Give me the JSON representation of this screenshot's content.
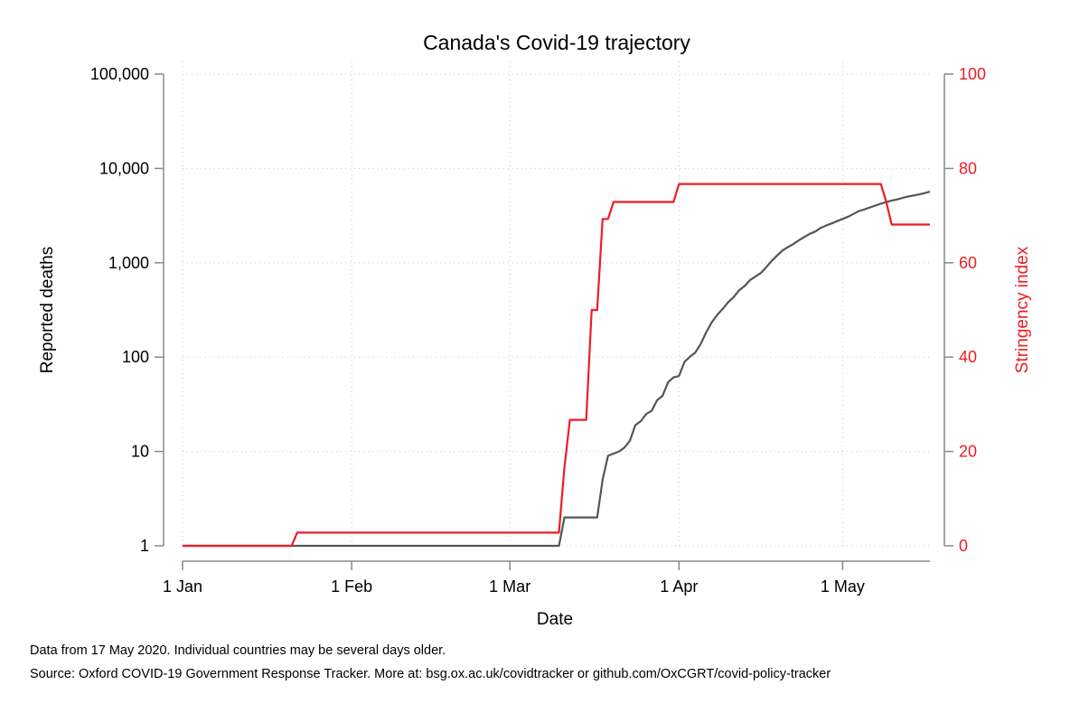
{
  "chart_data": {
    "type": "line",
    "title": "Canada's Covid-19 trajectory",
    "xlabel": "Date",
    "ylabel": "Reported deaths",
    "y2label": "Stringency index",
    "y_scale": "log",
    "ylim": [
      1,
      100000
    ],
    "y2lim": [
      0,
      100
    ],
    "xlim": [
      "2020-01-01",
      "2020-05-17"
    ],
    "x_ticks": [
      {
        "date": "2020-01-01",
        "label": "1 Jan"
      },
      {
        "date": "2020-02-01",
        "label": "1 Feb"
      },
      {
        "date": "2020-03-01",
        "label": "1 Mar"
      },
      {
        "date": "2020-04-01",
        "label": "1 Apr"
      },
      {
        "date": "2020-05-01",
        "label": "1 May"
      }
    ],
    "y_ticks": [
      {
        "value": 1,
        "label": "1"
      },
      {
        "value": 10,
        "label": "10"
      },
      {
        "value": 100,
        "label": "100"
      },
      {
        "value": 1000,
        "label": "1,000"
      },
      {
        "value": 10000,
        "label": "10,000"
      },
      {
        "value": 100000,
        "label": "100,000"
      }
    ],
    "y2_ticks": [
      {
        "value": 0,
        "label": "0"
      },
      {
        "value": 20,
        "label": "20"
      },
      {
        "value": 40,
        "label": "40"
      },
      {
        "value": 60,
        "label": "60"
      },
      {
        "value": 80,
        "label": "80"
      },
      {
        "value": 100,
        "label": "100"
      }
    ],
    "grid": true,
    "series": [
      {
        "name": "Reported deaths",
        "axis": "left",
        "color": "#555555",
        "points": [
          [
            "2020-01-01",
            1
          ],
          [
            "2020-03-10",
            1
          ],
          [
            "2020-03-11",
            2
          ],
          [
            "2020-03-17",
            2
          ],
          [
            "2020-03-18",
            5
          ],
          [
            "2020-03-19",
            9
          ],
          [
            "2020-03-21",
            10
          ],
          [
            "2020-03-22",
            11
          ],
          [
            "2020-03-23",
            13
          ],
          [
            "2020-03-24",
            19
          ],
          [
            "2020-03-25",
            21
          ],
          [
            "2020-03-26",
            25
          ],
          [
            "2020-03-27",
            27
          ],
          [
            "2020-03-28",
            35
          ],
          [
            "2020-03-29",
            39
          ],
          [
            "2020-03-30",
            54
          ],
          [
            "2020-03-31",
            61
          ],
          [
            "2020-04-01",
            63
          ],
          [
            "2020-04-02",
            89
          ],
          [
            "2020-04-03",
            101
          ],
          [
            "2020-04-04",
            112
          ],
          [
            "2020-04-05",
            139
          ],
          [
            "2020-04-06",
            184
          ],
          [
            "2020-04-07",
            233
          ],
          [
            "2020-04-08",
            280
          ],
          [
            "2020-04-09",
            324
          ],
          [
            "2020-04-10",
            381
          ],
          [
            "2020-04-11",
            432
          ],
          [
            "2020-04-12",
            509
          ],
          [
            "2020-04-13",
            566
          ],
          [
            "2020-04-14",
            653
          ],
          [
            "2020-04-15",
            714
          ],
          [
            "2020-04-16",
            779
          ],
          [
            "2020-04-17",
            900
          ],
          [
            "2020-04-18",
            1048
          ],
          [
            "2020-04-19",
            1195
          ],
          [
            "2020-04-20",
            1354
          ],
          [
            "2020-04-21",
            1470
          ],
          [
            "2020-04-22",
            1587
          ],
          [
            "2020-04-23",
            1735
          ],
          [
            "2020-04-24",
            1880
          ],
          [
            "2020-04-25",
            2028
          ],
          [
            "2020-04-26",
            2147
          ],
          [
            "2020-04-27",
            2350
          ],
          [
            "2020-04-28",
            2489
          ],
          [
            "2020-04-29",
            2617
          ],
          [
            "2020-04-30",
            2766
          ],
          [
            "2020-05-01",
            2919
          ],
          [
            "2020-05-02",
            3082
          ],
          [
            "2020-05-03",
            3299
          ],
          [
            "2020-05-04",
            3536
          ],
          [
            "2020-05-05",
            3682
          ],
          [
            "2020-05-06",
            3854
          ],
          [
            "2020-05-07",
            4043
          ],
          [
            "2020-05-08",
            4232
          ],
          [
            "2020-05-09",
            4406
          ],
          [
            "2020-05-10",
            4569
          ],
          [
            "2020-05-11",
            4697
          ],
          [
            "2020-05-12",
            4871
          ],
          [
            "2020-05-13",
            5049
          ],
          [
            "2020-05-14",
            5169
          ],
          [
            "2020-05-15",
            5304
          ],
          [
            "2020-05-16",
            5472
          ],
          [
            "2020-05-17",
            5679
          ]
        ]
      },
      {
        "name": "Stringency index",
        "axis": "right",
        "color": "#ee1c25",
        "points": [
          [
            "2020-01-01",
            0
          ],
          [
            "2020-01-21",
            0
          ],
          [
            "2020-01-22",
            2.8
          ],
          [
            "2020-03-10",
            2.8
          ],
          [
            "2020-03-11",
            16.7
          ],
          [
            "2020-03-12",
            26.7
          ],
          [
            "2020-03-15",
            26.7
          ],
          [
            "2020-03-16",
            50
          ],
          [
            "2020-03-17",
            50
          ],
          [
            "2020-03-18",
            69.3
          ],
          [
            "2020-03-19",
            69.3
          ],
          [
            "2020-03-20",
            72.9
          ],
          [
            "2020-03-31",
            72.9
          ],
          [
            "2020-04-01",
            76.7
          ],
          [
            "2020-05-08",
            76.7
          ],
          [
            "2020-05-09",
            72.9
          ],
          [
            "2020-05-10",
            68.1
          ],
          [
            "2020-05-17",
            68.1
          ]
        ]
      }
    ]
  },
  "notes": [
    "Data from 17 May 2020. Individual countries may be several days older.",
    "Source: Oxford COVID-19 Government Response Tracker. More at: bsg.ox.ac.uk/covidtracker or github.com/OxCGRT/covid-policy-tracker"
  ]
}
